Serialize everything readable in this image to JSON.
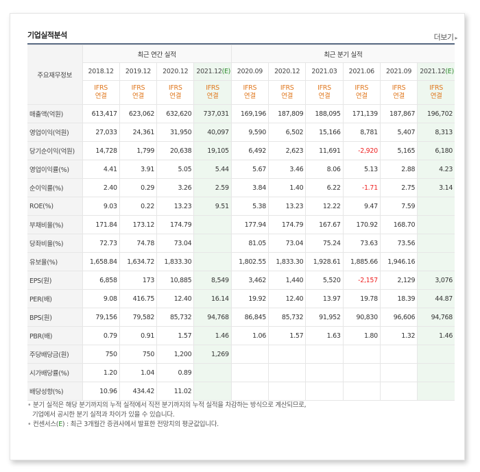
{
  "header": {
    "title": "기업실적분석",
    "more": "더보기"
  },
  "columns": {
    "row_label": "주요재무정보",
    "annual_group": "최근 연간 실적",
    "quarter_group": "최근 분기 실적",
    "periods": [
      {
        "label": "2018.12",
        "est": false
      },
      {
        "label": "2019.12",
        "est": false
      },
      {
        "label": "2020.12",
        "est": false
      },
      {
        "label": "2021.12",
        "est": true
      },
      {
        "label": "2020.09",
        "est": false
      },
      {
        "label": "2020.12",
        "est": false
      },
      {
        "label": "2021.03",
        "est": false
      },
      {
        "label": "2021.06",
        "est": false
      },
      {
        "label": "2021.09",
        "est": false
      },
      {
        "label": "2021.12",
        "est": true
      }
    ],
    "est_mark": "(E)",
    "ifrs_line1": "IFRS",
    "ifrs_line2": "연결"
  },
  "rows": [
    {
      "label": "매출액(억원)",
      "values": [
        "613,417",
        "623,062",
        "632,620",
        "737,031",
        "169,196",
        "187,809",
        "188,095",
        "171,139",
        "187,867",
        "196,702"
      ]
    },
    {
      "label": "영업이익(억원)",
      "values": [
        "27,033",
        "24,361",
        "31,950",
        "40,097",
        "9,590",
        "6,502",
        "15,166",
        "8,781",
        "5,407",
        "8,313"
      ]
    },
    {
      "label": "당기순이익(억원)",
      "values": [
        "14,728",
        "1,799",
        "20,638",
        "19,105",
        "6,492",
        "2,623",
        "11,691",
        "-2,920",
        "5,165",
        "6,180"
      ]
    },
    {
      "label": "영업이익률(%)",
      "values": [
        "4.41",
        "3.91",
        "5.05",
        "5.44",
        "5.67",
        "3.46",
        "8.06",
        "5.13",
        "2.88",
        "4.23"
      ]
    },
    {
      "label": "순이익률(%)",
      "values": [
        "2.40",
        "0.29",
        "3.26",
        "2.59",
        "3.84",
        "1.40",
        "6.22",
        "-1.71",
        "2.75",
        "3.14"
      ]
    },
    {
      "label": "ROE(%)",
      "values": [
        "9.03",
        "0.22",
        "13.23",
        "9.51",
        "5.38",
        "13.23",
        "12.22",
        "9.47",
        "7.59",
        ""
      ]
    },
    {
      "label": "부채비율(%)",
      "values": [
        "171.84",
        "173.12",
        "174.79",
        "",
        "177.94",
        "174.79",
        "167.67",
        "170.92",
        "168.70",
        ""
      ]
    },
    {
      "label": "당좌비율(%)",
      "values": [
        "72.73",
        "74.78",
        "73.04",
        "",
        "81.05",
        "73.04",
        "75.24",
        "73.63",
        "73.56",
        ""
      ]
    },
    {
      "label": "유보율(%)",
      "values": [
        "1,658.84",
        "1,634.72",
        "1,833.30",
        "",
        "1,802.55",
        "1,833.30",
        "1,928.61",
        "1,885.66",
        "1,946.16",
        ""
      ]
    },
    {
      "label": "EPS(원)",
      "values": [
        "6,858",
        "173",
        "10,885",
        "8,549",
        "3,462",
        "1,440",
        "5,520",
        "-2,157",
        "2,129",
        "3,076"
      ]
    },
    {
      "label": "PER(배)",
      "values": [
        "9.08",
        "416.75",
        "12.40",
        "16.14",
        "19.92",
        "12.40",
        "13.97",
        "19.78",
        "18.39",
        "44.87"
      ]
    },
    {
      "label": "BPS(원)",
      "values": [
        "79,156",
        "79,582",
        "85,732",
        "94,768",
        "86,845",
        "85,732",
        "91,952",
        "90,830",
        "96,606",
        "94,768"
      ]
    },
    {
      "label": "PBR(배)",
      "values": [
        "0.79",
        "0.91",
        "1.57",
        "1.46",
        "1.06",
        "1.57",
        "1.63",
        "1.80",
        "1.32",
        "1.46"
      ]
    },
    {
      "label": "주당배당금(원)",
      "values": [
        "750",
        "750",
        "1,200",
        "1,269",
        "",
        "",
        "",
        "",
        "",
        ""
      ]
    },
    {
      "label": "시가배당률(%)",
      "values": [
        "1.20",
        "1.04",
        "0.89",
        "",
        "",
        "",
        "",
        "",
        "",
        ""
      ]
    },
    {
      "label": "배당성향(%)",
      "values": [
        "10.96",
        "434.42",
        "11.02",
        "",
        "",
        "",
        "",
        "",
        "",
        ""
      ]
    }
  ],
  "notes": {
    "bullet": "•",
    "note1_line1": "분기 실적은 해당 분기까지의 누적 실적에서 직전 분기까지의 누적 실적을 차감하는 방식으로 계산되므로,",
    "note1_line2": "기업에서 공시한 분기 실적과 차이가 있을 수 있습니다.",
    "note2_prefix": "컨센서스(",
    "note2_mark": "E",
    "note2_suffix": ") : 최근 3개월간 증권사에서 발표한 전망치의 평균값입니다."
  },
  "colors": {
    "ifrs": "#e07920",
    "negative": "#ee2222",
    "estimate_bg": "#eef7ef",
    "top_rule": "#5a6b84",
    "estimate_mark": "#2b8a2b"
  }
}
